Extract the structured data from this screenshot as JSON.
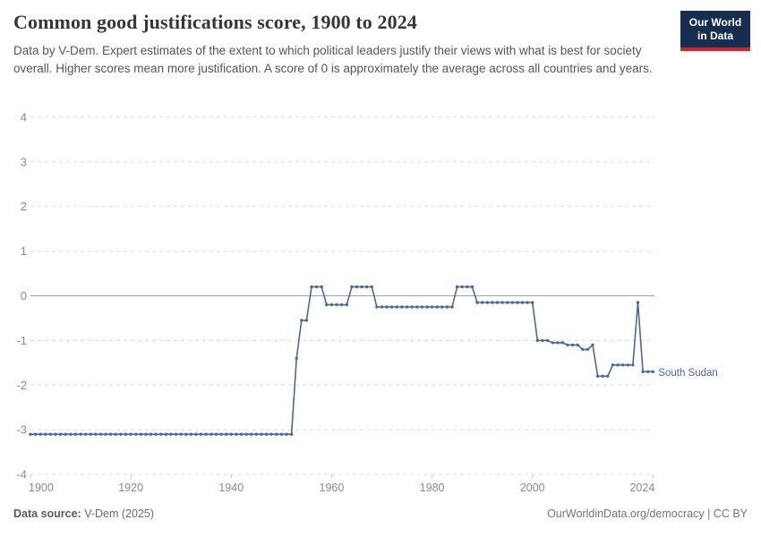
{
  "header": {
    "title": "Common good justifications score, 1900 to 2024",
    "subtitle": "Data by V-Dem. Expert estimates of the extent to which political leaders justify their views with what is best for society overall. Higher scores mean more justification. A score of 0 is approximately the average across all countries and years.",
    "logo": {
      "line1": "Our World",
      "line2": "in Data",
      "bg_color": "#152d4f",
      "accent_color": "#d1232a"
    }
  },
  "chart_data": {
    "type": "line",
    "title": "Common good justifications score, 1900 to 2024",
    "entity": "South Sudan",
    "xlabel": "",
    "ylabel": "",
    "x_range": [
      1900,
      2024
    ],
    "ylim": [
      -4,
      4
    ],
    "x_ticks": [
      1900,
      1920,
      1940,
      1960,
      1980,
      2000,
      2024
    ],
    "y_ticks": [
      4,
      3,
      2,
      1,
      0,
      -1,
      -2,
      -3,
      -4
    ],
    "grid": true,
    "legend_position": "end-of-line-label",
    "line_color": "#4a69a0",
    "years": {
      "start": 1900,
      "end": 2024,
      "step": 1
    },
    "values": [
      -3.1,
      -3.1,
      -3.1,
      -3.1,
      -3.1,
      -3.1,
      -3.1,
      -3.1,
      -3.1,
      -3.1,
      -3.1,
      -3.1,
      -3.1,
      -3.1,
      -3.1,
      -3.1,
      -3.1,
      -3.1,
      -3.1,
      -3.1,
      -3.1,
      -3.1,
      -3.1,
      -3.1,
      -3.1,
      -3.1,
      -3.1,
      -3.1,
      -3.1,
      -3.1,
      -3.1,
      -3.1,
      -3.1,
      -3.1,
      -3.1,
      -3.1,
      -3.1,
      -3.1,
      -3.1,
      -3.1,
      -3.1,
      -3.1,
      -3.1,
      -3.1,
      -3.1,
      -3.1,
      -3.1,
      -3.1,
      -3.1,
      -3.1,
      -3.1,
      -3.1,
      -3.1,
      -1.4,
      -0.55,
      -0.55,
      0.2,
      0.2,
      0.2,
      -0.2,
      -0.2,
      -0.2,
      -0.2,
      -0.2,
      0.2,
      0.2,
      0.2,
      0.2,
      0.2,
      -0.25,
      -0.25,
      -0.25,
      -0.25,
      -0.25,
      -0.25,
      -0.25,
      -0.25,
      -0.25,
      -0.25,
      -0.25,
      -0.25,
      -0.25,
      -0.25,
      -0.25,
      -0.25,
      0.2,
      0.2,
      0.2,
      0.2,
      -0.15,
      -0.15,
      -0.15,
      -0.15,
      -0.15,
      -0.15,
      -0.15,
      -0.15,
      -0.15,
      -0.15,
      -0.15,
      -0.15,
      -1,
      -1,
      -1,
      -1.05,
      -1.05,
      -1.05,
      -1.1,
      -1.1,
      -1.1,
      -1.2,
      -1.2,
      -1.1,
      -1.8,
      -1.8,
      -1.8,
      -1.55,
      -1.55,
      -1.55,
      -1.55,
      -1.55,
      -0.15,
      -1.7,
      -1.7,
      -1.7
    ]
  },
  "footer": {
    "source_label": "Data source:",
    "source_value": " V-Dem (2025)",
    "credit": "OurWorldinData.org/democracy | CC BY"
  }
}
